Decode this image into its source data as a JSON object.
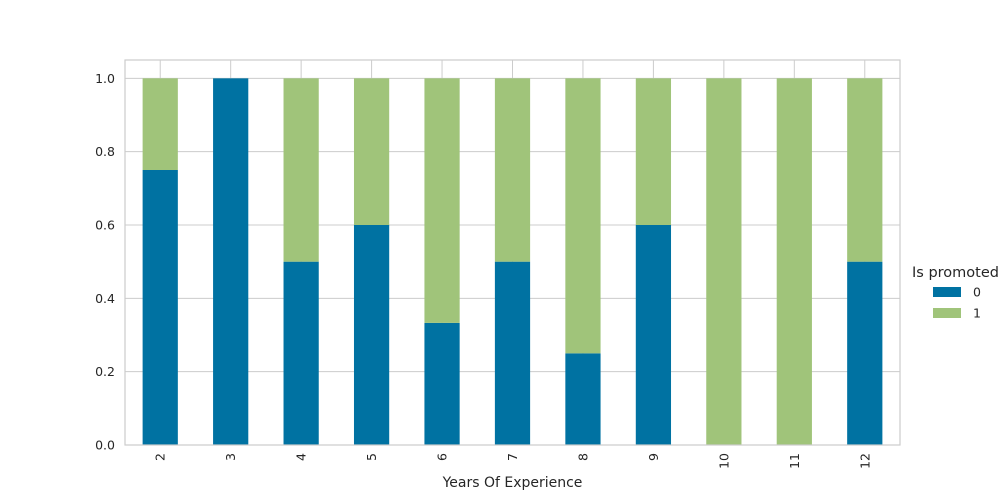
{
  "chart_data": {
    "type": "bar",
    "stacked": true,
    "title": "",
    "xlabel": "Years Of Experience",
    "ylabel": "",
    "ylim": [
      0,
      1.05
    ],
    "yticks": [
      "0.0",
      "0.2",
      "0.4",
      "0.6",
      "0.8",
      "1.0"
    ],
    "grid": true,
    "categories": [
      "2",
      "3",
      "4",
      "5",
      "6",
      "7",
      "8",
      "9",
      "10",
      "11",
      "12"
    ],
    "series": [
      {
        "name": "0",
        "color": "#0072a2",
        "values": [
          0.75,
          1.0,
          0.5,
          0.6,
          0.333,
          0.5,
          0.25,
          0.6,
          0.0,
          0.0,
          0.5
        ]
      },
      {
        "name": "1",
        "color": "#a0c47a",
        "values": [
          0.25,
          0.0,
          0.5,
          0.4,
          0.667,
          0.5,
          0.75,
          0.4,
          1.0,
          1.0,
          0.5
        ]
      }
    ],
    "legend": {
      "title": "Is promoted",
      "placement": "right"
    }
  }
}
